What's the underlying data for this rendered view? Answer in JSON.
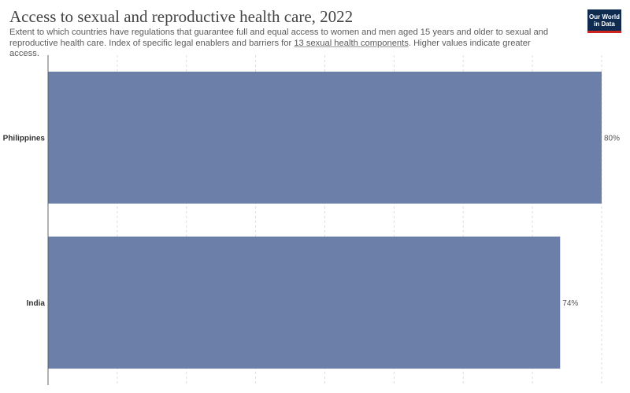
{
  "header": {
    "title": "Access to sexual and reproductive health care, 2022",
    "subtitle_before": "Extent to which countries have regulations that guarantee full and equal access to women and men aged 15 years and older to sexual and reproductive health care. Index of specific legal enablers and barriers for ",
    "subtitle_link": "13 sexual health components",
    "subtitle_after": ". Higher values indicate greater access.",
    "logo_line1": "Our World",
    "logo_line2": "in Data"
  },
  "colors": {
    "bar": "#6b7fa8",
    "grid": "#dddddd",
    "axis": "#666666",
    "label": "#333333",
    "value": "#555555",
    "logo_bg": "#0f2b4f",
    "logo_accent": "#ce261e"
  },
  "chart_data": {
    "type": "bar",
    "orientation": "horizontal",
    "categories": [
      "Philippines",
      "India"
    ],
    "values": [
      80,
      74
    ],
    "value_labels": [
      "80%",
      "74%"
    ],
    "xlim": [
      0,
      80
    ],
    "grid": "vertical dashed"
  }
}
